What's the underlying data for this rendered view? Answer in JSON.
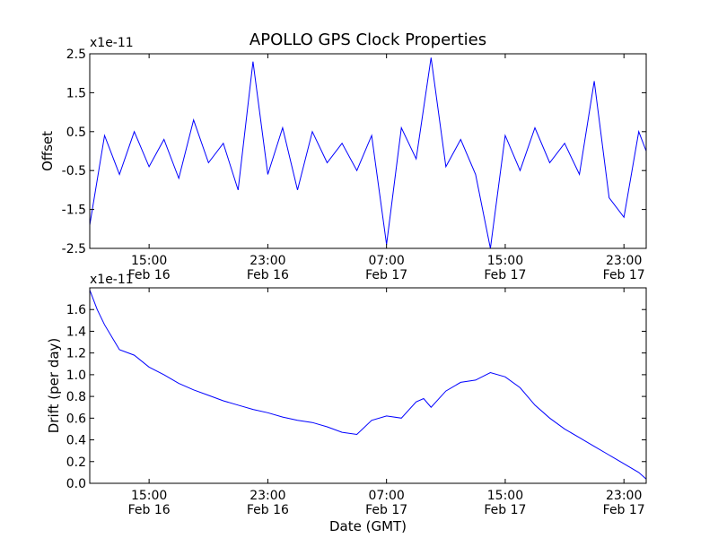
{
  "figure": {
    "title": "APOLLO GPS Clock Properties",
    "xlabel": "Date (GMT)"
  },
  "colors": {
    "line": "#0000ff",
    "axes": "#000000",
    "background": "#ffffff"
  },
  "chart_data": [
    {
      "type": "line",
      "ylabel": "Offset",
      "offset_text": "x1e-11",
      "xlim": [
        "2010-02-16 11:00",
        "2010-02-18 00:30"
      ],
      "ylim": [
        -2.5,
        2.5
      ],
      "yticks": [
        "2.5",
        "1.5",
        "0.5",
        "-0.5",
        "-1.5",
        "-2.5"
      ],
      "xticks": [
        {
          "time": "15:00",
          "date": "Feb 16"
        },
        {
          "time": "23:00",
          "date": "Feb 16"
        },
        {
          "time": "07:00",
          "date": "Feb 17"
        },
        {
          "time": "15:00",
          "date": "Feb 17"
        },
        {
          "time": "23:00",
          "date": "Feb 17"
        }
      ],
      "grid": false,
      "series": [
        {
          "x": [
            "2010-02-16 11:00",
            "2010-02-16 12:00",
            "2010-02-16 13:00",
            "2010-02-16 14:00",
            "2010-02-16 15:00",
            "2010-02-16 16:00",
            "2010-02-16 17:00",
            "2010-02-16 18:00",
            "2010-02-16 19:00",
            "2010-02-16 20:00",
            "2010-02-16 21:00",
            "2010-02-16 22:00",
            "2010-02-16 23:00",
            "2010-02-17 00:00",
            "2010-02-17 01:00",
            "2010-02-17 02:00",
            "2010-02-17 03:00",
            "2010-02-17 04:00",
            "2010-02-17 05:00",
            "2010-02-17 06:00",
            "2010-02-17 07:00",
            "2010-02-17 08:00",
            "2010-02-17 09:00",
            "2010-02-17 10:00",
            "2010-02-17 11:00",
            "2010-02-17 12:00",
            "2010-02-17 13:00",
            "2010-02-17 14:00",
            "2010-02-17 15:00",
            "2010-02-17 16:00",
            "2010-02-17 17:00",
            "2010-02-17 18:00",
            "2010-02-17 19:00",
            "2010-02-17 20:00",
            "2010-02-17 21:00",
            "2010-02-17 22:00",
            "2010-02-17 23:00",
            "2010-02-18 00:00",
            "2010-02-18 00:30"
          ],
          "y": [
            -1.9,
            0.4,
            -0.6,
            0.5,
            -0.4,
            0.3,
            -0.7,
            0.8,
            -0.3,
            0.2,
            -1.0,
            2.3,
            -0.6,
            0.6,
            -1.0,
            0.5,
            -0.3,
            0.2,
            -0.5,
            0.4,
            -2.4,
            0.6,
            -0.2,
            2.4,
            -0.4,
            0.3,
            -0.6,
            -2.5,
            0.4,
            -0.5,
            0.6,
            -0.3,
            0.2,
            -0.6,
            1.8,
            -1.2,
            -1.7,
            0.5,
            0.0
          ]
        }
      ]
    },
    {
      "type": "line",
      "ylabel": "Drift (per day)",
      "offset_text": "x1e-11",
      "xlim": [
        "2010-02-16 11:00",
        "2010-02-18 00:30"
      ],
      "ylim": [
        0.0,
        1.8
      ],
      "yticks": [
        "1.6",
        "1.4",
        "1.2",
        "1.0",
        "0.8",
        "0.6",
        "0.4",
        "0.2",
        "0.0"
      ],
      "xticks": [
        {
          "time": "15:00",
          "date": "Feb 16"
        },
        {
          "time": "23:00",
          "date": "Feb 16"
        },
        {
          "time": "07:00",
          "date": "Feb 17"
        },
        {
          "time": "15:00",
          "date": "Feb 17"
        },
        {
          "time": "23:00",
          "date": "Feb 17"
        }
      ],
      "grid": false,
      "series": [
        {
          "x": [
            "2010-02-16 11:00",
            "2010-02-16 11:30",
            "2010-02-16 12:00",
            "2010-02-16 13:00",
            "2010-02-16 14:00",
            "2010-02-16 15:00",
            "2010-02-16 16:00",
            "2010-02-16 17:00",
            "2010-02-16 18:00",
            "2010-02-16 19:00",
            "2010-02-16 20:00",
            "2010-02-16 21:00",
            "2010-02-16 22:00",
            "2010-02-16 23:00",
            "2010-02-17 00:00",
            "2010-02-17 01:00",
            "2010-02-17 02:00",
            "2010-02-17 03:00",
            "2010-02-17 04:00",
            "2010-02-17 05:00",
            "2010-02-17 06:00",
            "2010-02-17 07:00",
            "2010-02-17 08:00",
            "2010-02-17 09:00",
            "2010-02-17 09:30",
            "2010-02-17 10:00",
            "2010-02-17 11:00",
            "2010-02-17 12:00",
            "2010-02-17 13:00",
            "2010-02-17 14:00",
            "2010-02-17 15:00",
            "2010-02-17 16:00",
            "2010-02-17 17:00",
            "2010-02-17 18:00",
            "2010-02-17 19:00",
            "2010-02-17 20:00",
            "2010-02-17 21:00",
            "2010-02-17 22:00",
            "2010-02-17 23:00",
            "2010-02-18 00:00",
            "2010-02-18 00:30"
          ],
          "y": [
            1.78,
            1.6,
            1.46,
            1.23,
            1.18,
            1.07,
            1.0,
            0.92,
            0.86,
            0.81,
            0.76,
            0.72,
            0.68,
            0.65,
            0.61,
            0.58,
            0.56,
            0.52,
            0.47,
            0.45,
            0.58,
            0.62,
            0.6,
            0.75,
            0.78,
            0.7,
            0.85,
            0.93,
            0.95,
            1.02,
            0.98,
            0.88,
            0.72,
            0.6,
            0.5,
            0.42,
            0.34,
            0.26,
            0.18,
            0.1,
            0.04
          ]
        }
      ]
    }
  ]
}
